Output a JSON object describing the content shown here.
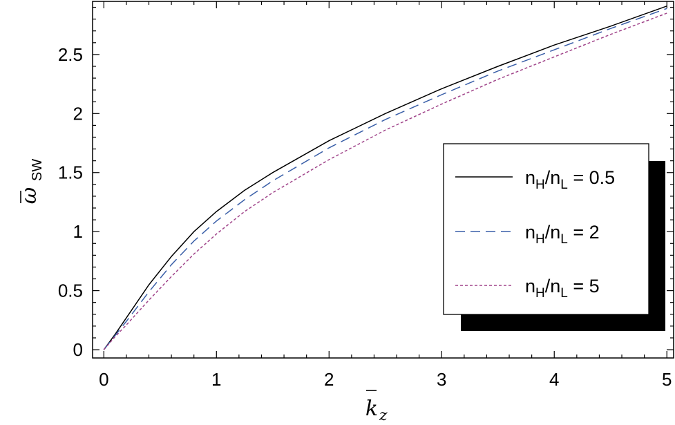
{
  "chart_data": {
    "type": "line",
    "title": "",
    "xlabel": {
      "symbol": "k",
      "subscript": "z"
    },
    "ylabel": {
      "symbol": "ω",
      "subscript": "SW"
    },
    "xlim": [
      -0.1,
      5.06
    ],
    "ylim": [
      -0.07,
      2.95
    ],
    "x_ticks": [
      0,
      1,
      2,
      3,
      4,
      5
    ],
    "x_tick_labels": [
      "0",
      "1",
      "2",
      "3",
      "4",
      "5"
    ],
    "y_ticks": [
      0,
      0.5,
      1,
      1.5,
      2,
      2.5
    ],
    "y_tick_labels": [
      "0",
      "0.5",
      "1",
      "1.5",
      "2",
      "2.5"
    ],
    "grid": false,
    "legend_position": "right",
    "x": [
      0,
      0.1,
      0.2,
      0.4,
      0.6,
      0.8,
      1,
      1.25,
      1.5,
      2,
      2.5,
      3,
      3.5,
      4,
      4.5,
      5
    ],
    "series": [
      {
        "label_parts": [
          "n",
          "H",
          "/n",
          "L",
          " = 0.5"
        ],
        "color": "#000000",
        "dash": "solid",
        "values": [
          0,
          0.13,
          0.27,
          0.55,
          0.79,
          1.0,
          1.17,
          1.35,
          1.5,
          1.77,
          2.0,
          2.21,
          2.4,
          2.58,
          2.74,
          2.91
        ]
      },
      {
        "label_parts": [
          "n",
          "H",
          "/n",
          "L",
          " = 2"
        ],
        "color": "#3a5fa8",
        "dash": "long-dash",
        "values": [
          0,
          0.12,
          0.24,
          0.49,
          0.72,
          0.92,
          1.09,
          1.27,
          1.43,
          1.71,
          1.95,
          2.16,
          2.36,
          2.54,
          2.72,
          2.89
        ]
      },
      {
        "label_parts": [
          "n",
          "H",
          "/n",
          "L",
          " = 5"
        ],
        "color": "#a0448a",
        "dash": "short-dash",
        "values": [
          0,
          0.11,
          0.21,
          0.42,
          0.62,
          0.81,
          0.98,
          1.17,
          1.33,
          1.61,
          1.86,
          2.08,
          2.29,
          2.48,
          2.67,
          2.85
        ]
      }
    ]
  }
}
